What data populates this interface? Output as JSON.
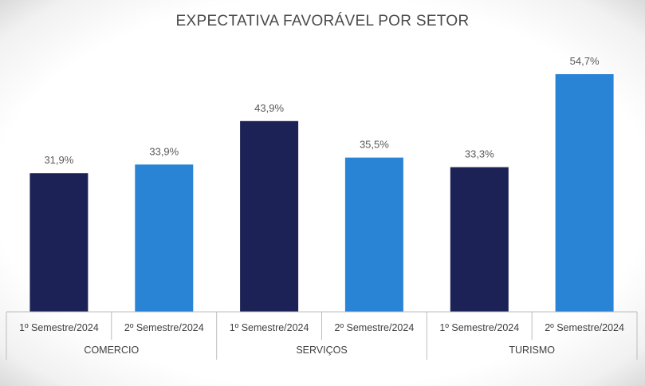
{
  "chart_data": {
    "type": "bar",
    "title": "EXPECTATIVA FAVORÁVEL POR SETOR",
    "xlabel": "",
    "ylabel": "",
    "ylim": [
      0,
      54.7
    ],
    "grid": false,
    "groups": [
      "COMERCIO",
      "SERVIÇOS",
      "TURISMO"
    ],
    "categories": [
      "1º Semestre/2024",
      "2º Semestre/2024",
      "1º Semestre/2024",
      "2º Semestre/2024",
      "1º Semestre/2024",
      "2º Semestre/2024"
    ],
    "values": [
      31.9,
      33.9,
      43.9,
      35.5,
      33.3,
      54.7
    ],
    "value_labels": [
      "31,9%",
      "33,9%",
      "43,9%",
      "35,5%",
      "33,3%",
      "54,7%"
    ],
    "colors": [
      "#1c2255",
      "#2a84d6",
      "#1c2255",
      "#2a84d6",
      "#1c2255",
      "#2a84d6"
    ],
    "axis_color": "#bcbcbc"
  }
}
